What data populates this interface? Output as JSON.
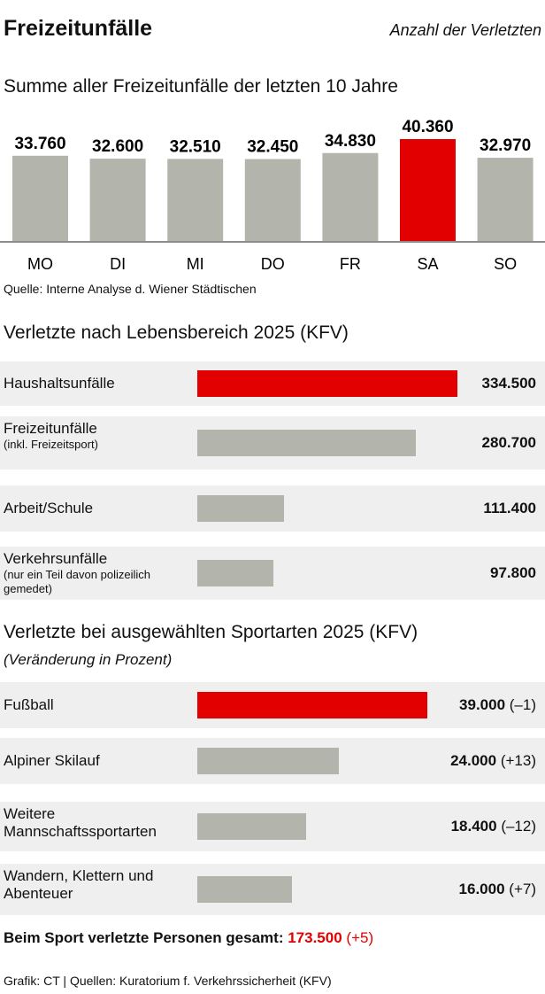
{
  "title": "Freizeitunfälle",
  "unit": "Anzahl der Verletzten",
  "chart_data": [
    {
      "type": "bar",
      "title": "Summe aller Freizeitunfälle der letzten 10 Jahre",
      "categories": [
        "MO",
        "DI",
        "MI",
        "DO",
        "FR",
        "SA",
        "SO"
      ],
      "values": [
        33760,
        32600,
        32510,
        32450,
        34830,
        40360,
        32970
      ],
      "labels": [
        "33.760",
        "32.600",
        "32.510",
        "32.450",
        "34.830",
        "40.360",
        "32.970"
      ],
      "highlight": "SA",
      "source": "Quelle: Interne Analyse d. Wiener Städtischen"
    },
    {
      "type": "bar",
      "orientation": "horizontal",
      "title": "Verletzte nach Lebensbereich 2025 (KFV)",
      "rows": [
        {
          "label": "Haushaltsunfälle",
          "note": "",
          "value": 334500,
          "value_label": "334.500",
          "highlight": true
        },
        {
          "label": "Freizeitunfälle",
          "note": "(inkl. Freizeitsport)",
          "value": 280700,
          "value_label": "280.700",
          "highlight": false
        },
        {
          "label": "Arbeit/Schule",
          "note": "",
          "value": 111400,
          "value_label": "111.400",
          "highlight": false
        },
        {
          "label": "Verkehrsunfälle",
          "note": "(nur ein Teil davon polizeilich gemedet)",
          "value": 97800,
          "value_label": "97.800",
          "highlight": false
        }
      ]
    },
    {
      "type": "bar",
      "orientation": "horizontal",
      "title": "Verletzte bei ausgewählten Sportarten 2025 (KFV)",
      "subtitle": "(Veränderung in Prozent)",
      "rows": [
        {
          "label": "Fußball",
          "value": 39000,
          "value_label": "39.000",
          "change": "(–1)",
          "highlight": true
        },
        {
          "label": "Alpiner Skilauf",
          "value": 24000,
          "value_label": "24.000",
          "change": "(+13)",
          "highlight": false
        },
        {
          "label": "Weitere Mannschaftssportarten",
          "value": 18400,
          "value_label": "18.400",
          "change": "(–12)",
          "highlight": false
        },
        {
          "label": "Wandern, Klettern und Abenteuer",
          "value": 16000,
          "value_label": "16.000",
          "change": "(+7)",
          "highlight": false
        }
      ]
    }
  ],
  "total": {
    "label": "Beim Sport verletzte Personen gesamt:",
    "value": "173.500",
    "change": "(+5)"
  },
  "footer": "Grafik: CT | Quellen: Kuratorium f. Verkehrssicherheit (KFV)",
  "colors": {
    "highlight": "#e30000",
    "bar": "#b3b5ad",
    "row_bg": "#efefef"
  }
}
